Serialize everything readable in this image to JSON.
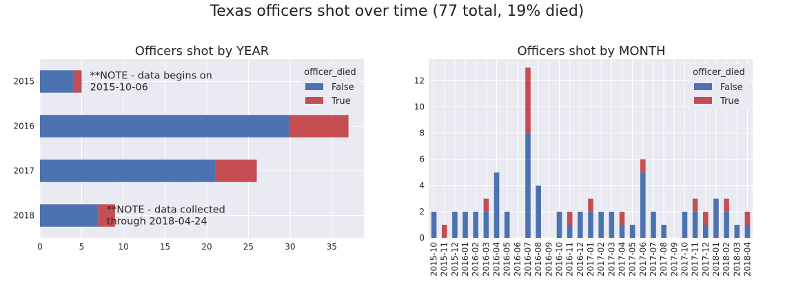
{
  "figure_title": "Texas officers shot over time (77 total, 19% died)",
  "colors": {
    "false": "#4c72b0",
    "true": "#c44e52",
    "plot_bg": "#eaeaf2"
  },
  "chart_data": [
    {
      "type": "bar",
      "orientation": "horizontal",
      "stacked": true,
      "title": "Officers shot by YEAR",
      "xlabel": "",
      "ylabel": "",
      "categories": [
        "2015",
        "2016",
        "2017",
        "2018"
      ],
      "series": [
        {
          "name": "False",
          "values": [
            4,
            30,
            21,
            7
          ]
        },
        {
          "name": "True",
          "values": [
            1,
            7,
            5,
            2
          ]
        }
      ],
      "xlim": [
        0,
        38.85
      ],
      "xticks": [
        0,
        5,
        10,
        15,
        20,
        25,
        30,
        35
      ],
      "grid": true,
      "legend": {
        "title": "officer_died",
        "placement": "top-right"
      },
      "annotations": [
        {
          "category": "2015",
          "x": 6,
          "lines": [
            "**NOTE - data begins on",
            "2015-10-06"
          ]
        },
        {
          "category": "2018",
          "x": 8,
          "lines": [
            "**NOTE - data collected",
            "through 2018-04-24"
          ]
        }
      ]
    },
    {
      "type": "bar",
      "orientation": "vertical",
      "stacked": true,
      "title": "Officers shot by MONTH",
      "xlabel": "",
      "ylabel": "",
      "categories": [
        "2015-10",
        "2015-11",
        "2015-12",
        "2016-01",
        "2016-02",
        "2016-03",
        "2016-04",
        "2016-05",
        "2016-06",
        "2016-07",
        "2016-08",
        "2016-09",
        "2016-10",
        "2016-11",
        "2016-12",
        "2017-01",
        "2017-02",
        "2017-03",
        "2017-04",
        "2017-05",
        "2017-06",
        "2017-07",
        "2017-08",
        "2017-09",
        "2017-10",
        "2017-11",
        "2017-12",
        "2018-01",
        "2018-02",
        "2018-03",
        "2018-04"
      ],
      "series": [
        {
          "name": "False",
          "values": [
            2,
            0,
            2,
            2,
            2,
            2,
            5,
            2,
            0,
            8,
            4,
            0,
            2,
            1,
            2,
            2,
            2,
            2,
            1,
            1,
            5,
            2,
            1,
            0,
            2,
            2,
            1,
            3,
            2,
            1,
            1
          ]
        },
        {
          "name": "True",
          "values": [
            0,
            1,
            0,
            0,
            0,
            1,
            0,
            0,
            0,
            5,
            0,
            0,
            0,
            1,
            0,
            1,
            0,
            0,
            1,
            0,
            1,
            0,
            0,
            0,
            0,
            1,
            1,
            0,
            1,
            0,
            1
          ]
        }
      ],
      "ylim": [
        0,
        13.65
      ],
      "yticks": [
        0,
        2,
        4,
        6,
        8,
        10,
        12
      ],
      "grid": true,
      "legend": {
        "title": "officer_died",
        "placement": "top-right"
      }
    }
  ]
}
